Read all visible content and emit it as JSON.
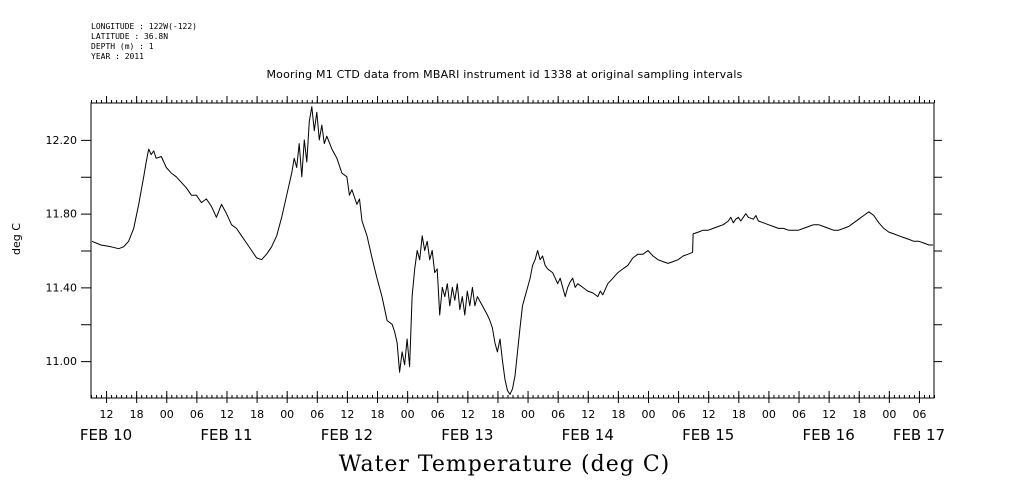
{
  "meta": {
    "longitude": "LONGITUDE : 122W(-122)",
    "latitude": "LATITUDE : 36.8N",
    "depth": "DEPTH (m) : 1",
    "year": "YEAR : 2011"
  },
  "chart_data": {
    "type": "line",
    "title": "Mooring M1 CTD data from MBARI instrument id 1338 at original sampling intervals",
    "xlabel": "Water Temperature (deg C)",
    "ylabel": "deg C",
    "x_unit": "hours from FEB 10 00:00",
    "xlim": [
      9,
      177
    ],
    "ylim": [
      10.8,
      12.4
    ],
    "y_ticks": [
      11.0,
      11.2,
      11.4,
      11.6,
      11.8,
      12.0,
      12.2
    ],
    "y_tick_labels": [
      {
        "value": 11.0,
        "label": "11.00"
      },
      {
        "value": 11.4,
        "label": "11.40"
      },
      {
        "value": 11.8,
        "label": "11.80"
      },
      {
        "value": 12.2,
        "label": "12.20"
      }
    ],
    "hour_ticks": [
      {
        "h": 12,
        "label": "12"
      },
      {
        "h": 18,
        "label": "18"
      },
      {
        "h": 24,
        "label": "00"
      },
      {
        "h": 30,
        "label": "06"
      },
      {
        "h": 36,
        "label": "12"
      },
      {
        "h": 42,
        "label": "18"
      },
      {
        "h": 48,
        "label": "00"
      },
      {
        "h": 54,
        "label": "06"
      },
      {
        "h": 60,
        "label": "12"
      },
      {
        "h": 66,
        "label": "18"
      },
      {
        "h": 72,
        "label": "00"
      },
      {
        "h": 78,
        "label": "06"
      },
      {
        "h": 84,
        "label": "12"
      },
      {
        "h": 90,
        "label": "18"
      },
      {
        "h": 96,
        "label": "00"
      },
      {
        "h": 102,
        "label": "06"
      },
      {
        "h": 108,
        "label": "12"
      },
      {
        "h": 114,
        "label": "18"
      },
      {
        "h": 120,
        "label": "00"
      },
      {
        "h": 126,
        "label": "06"
      },
      {
        "h": 132,
        "label": "12"
      },
      {
        "h": 138,
        "label": "18"
      },
      {
        "h": 144,
        "label": "00"
      },
      {
        "h": 150,
        "label": "06"
      },
      {
        "h": 156,
        "label": "12"
      },
      {
        "h": 162,
        "label": "18"
      },
      {
        "h": 168,
        "label": "00"
      },
      {
        "h": 174,
        "label": "06"
      }
    ],
    "day_labels": [
      {
        "h": 12,
        "label": "FEB 10"
      },
      {
        "h": 36,
        "label": "FEB 11"
      },
      {
        "h": 60,
        "label": "FEB 12"
      },
      {
        "h": 84,
        "label": "FEB 13"
      },
      {
        "h": 108,
        "label": "FEB 14"
      },
      {
        "h": 132,
        "label": "FEB 15"
      },
      {
        "h": 156,
        "label": "FEB 16"
      },
      {
        "h": 174,
        "label": "FEB 17"
      }
    ],
    "series": [
      {
        "points": [
          [
            9.2,
            11.65
          ],
          [
            11.0,
            11.63
          ],
          [
            13.0,
            11.62
          ],
          [
            14.5,
            11.61
          ],
          [
            15.5,
            11.62
          ],
          [
            16.5,
            11.65
          ],
          [
            17.5,
            11.72
          ],
          [
            18.5,
            11.85
          ],
          [
            19.5,
            12.0
          ],
          [
            20.0,
            12.08
          ],
          [
            20.5,
            12.15
          ],
          [
            21.0,
            12.12
          ],
          [
            21.5,
            12.14
          ],
          [
            22.0,
            12.1
          ],
          [
            23.0,
            12.11
          ],
          [
            24.0,
            12.05
          ],
          [
            25.0,
            12.02
          ],
          [
            26.0,
            12.0
          ],
          [
            27.0,
            11.97
          ],
          [
            28.0,
            11.94
          ],
          [
            29.0,
            11.9
          ],
          [
            30.0,
            11.9
          ],
          [
            31.0,
            11.86
          ],
          [
            32.0,
            11.88
          ],
          [
            33.0,
            11.84
          ],
          [
            34.0,
            11.78
          ],
          [
            35.0,
            11.85
          ],
          [
            36.0,
            11.8
          ],
          [
            37.0,
            11.74
          ],
          [
            38.0,
            11.72
          ],
          [
            39.0,
            11.68
          ],
          [
            40.0,
            11.64
          ],
          [
            41.0,
            11.6
          ],
          [
            42.0,
            11.56
          ],
          [
            43.0,
            11.55
          ],
          [
            44.0,
            11.58
          ],
          [
            45.0,
            11.62
          ],
          [
            46.0,
            11.68
          ],
          [
            47.0,
            11.78
          ],
          [
            48.0,
            11.9
          ],
          [
            49.0,
            12.02
          ],
          [
            49.5,
            12.1
          ],
          [
            50.0,
            12.05
          ],
          [
            50.5,
            12.18
          ],
          [
            51.0,
            12.0
          ],
          [
            51.5,
            12.2
          ],
          [
            52.0,
            12.08
          ],
          [
            52.5,
            12.3
          ],
          [
            53.0,
            12.38
          ],
          [
            53.5,
            12.25
          ],
          [
            54.0,
            12.35
          ],
          [
            54.5,
            12.2
          ],
          [
            55.0,
            12.28
          ],
          [
            55.5,
            12.18
          ],
          [
            56.0,
            12.22
          ],
          [
            57.0,
            12.15
          ],
          [
            58.0,
            12.1
          ],
          [
            59.0,
            12.02
          ],
          [
            60.0,
            12.0
          ],
          [
            60.5,
            11.9
          ],
          [
            61.0,
            11.93
          ],
          [
            62.0,
            11.85
          ],
          [
            62.5,
            11.88
          ],
          [
            63.0,
            11.76
          ],
          [
            64.0,
            11.68
          ],
          [
            65.0,
            11.56
          ],
          [
            66.0,
            11.45
          ],
          [
            67.0,
            11.35
          ],
          [
            68.0,
            11.22
          ],
          [
            69.0,
            11.2
          ],
          [
            69.5,
            11.16
          ],
          [
            70.0,
            11.1
          ],
          [
            70.5,
            10.94
          ],
          [
            71.0,
            11.05
          ],
          [
            71.5,
            10.98
          ],
          [
            72.0,
            11.12
          ],
          [
            72.5,
            10.97
          ],
          [
            73.0,
            11.35
          ],
          [
            73.5,
            11.5
          ],
          [
            74.0,
            11.6
          ],
          [
            74.5,
            11.55
          ],
          [
            75.0,
            11.68
          ],
          [
            75.5,
            11.6
          ],
          [
            76.0,
            11.65
          ],
          [
            76.5,
            11.55
          ],
          [
            77.0,
            11.6
          ],
          [
            77.5,
            11.48
          ],
          [
            78.0,
            11.5
          ],
          [
            78.5,
            11.25
          ],
          [
            79.0,
            11.4
          ],
          [
            79.5,
            11.35
          ],
          [
            80.0,
            11.42
          ],
          [
            80.5,
            11.3
          ],
          [
            81.0,
            11.4
          ],
          [
            81.5,
            11.33
          ],
          [
            82.0,
            11.42
          ],
          [
            82.5,
            11.28
          ],
          [
            83.0,
            11.35
          ],
          [
            83.5,
            11.25
          ],
          [
            84.0,
            11.38
          ],
          [
            84.5,
            11.3
          ],
          [
            85.0,
            11.4
          ],
          [
            85.5,
            11.3
          ],
          [
            86.0,
            11.35
          ],
          [
            87.0,
            11.3
          ],
          [
            88.0,
            11.25
          ],
          [
            88.5,
            11.22
          ],
          [
            89.0,
            11.18
          ],
          [
            89.5,
            11.1
          ],
          [
            90.0,
            11.05
          ],
          [
            90.5,
            11.12
          ],
          [
            91.0,
            11.0
          ],
          [
            91.5,
            10.9
          ],
          [
            92.0,
            10.84
          ],
          [
            92.5,
            10.82
          ],
          [
            93.0,
            10.85
          ],
          [
            93.5,
            10.92
          ],
          [
            94.0,
            11.05
          ],
          [
            94.5,
            11.18
          ],
          [
            95.0,
            11.3
          ],
          [
            95.5,
            11.35
          ],
          [
            96.0,
            11.4
          ],
          [
            96.5,
            11.45
          ],
          [
            97.0,
            11.52
          ],
          [
            97.5,
            11.55
          ],
          [
            98.0,
            11.6
          ],
          [
            98.5,
            11.55
          ],
          [
            99.0,
            11.57
          ],
          [
            99.5,
            11.52
          ],
          [
            100.0,
            11.5
          ],
          [
            101.0,
            11.48
          ],
          [
            101.5,
            11.45
          ],
          [
            102.0,
            11.42
          ],
          [
            102.5,
            11.45
          ],
          [
            103.0,
            11.4
          ],
          [
            103.5,
            11.35
          ],
          [
            104.0,
            11.4
          ],
          [
            104.5,
            11.43
          ],
          [
            105.0,
            11.45
          ],
          [
            105.5,
            11.4
          ],
          [
            106.0,
            11.42
          ],
          [
            107.0,
            11.4
          ],
          [
            108.0,
            11.38
          ],
          [
            109.0,
            11.37
          ],
          [
            110.0,
            11.35
          ],
          [
            110.5,
            11.38
          ],
          [
            111.0,
            11.36
          ],
          [
            112.0,
            11.42
          ],
          [
            113.0,
            11.45
          ],
          [
            114.0,
            11.48
          ],
          [
            115.0,
            11.5
          ],
          [
            116.0,
            11.52
          ],
          [
            117.0,
            11.56
          ],
          [
            118.0,
            11.58
          ],
          [
            119.0,
            11.58
          ],
          [
            120.0,
            11.6
          ],
          [
            121.0,
            11.57
          ],
          [
            122.0,
            11.55
          ],
          [
            123.0,
            11.54
          ],
          [
            124.0,
            11.53
          ],
          [
            125.0,
            11.54
          ],
          [
            126.0,
            11.55
          ],
          [
            127.0,
            11.57
          ],
          [
            128.0,
            11.58
          ],
          [
            128.9,
            11.59
          ],
          [
            129.0,
            11.69
          ],
          [
            130.0,
            11.7
          ],
          [
            131.0,
            11.71
          ],
          [
            132.0,
            11.71
          ],
          [
            133.0,
            11.72
          ],
          [
            134.0,
            11.73
          ],
          [
            135.0,
            11.74
          ],
          [
            136.0,
            11.76
          ],
          [
            136.5,
            11.78
          ],
          [
            137.0,
            11.75
          ],
          [
            137.5,
            11.77
          ],
          [
            138.0,
            11.78
          ],
          [
            138.5,
            11.76
          ],
          [
            139.0,
            11.78
          ],
          [
            139.5,
            11.8
          ],
          [
            140.0,
            11.78
          ],
          [
            141.0,
            11.77
          ],
          [
            141.5,
            11.79
          ],
          [
            142.0,
            11.76
          ],
          [
            143.0,
            11.75
          ],
          [
            144.0,
            11.74
          ],
          [
            145.0,
            11.73
          ],
          [
            146.0,
            11.72
          ],
          [
            147.0,
            11.72
          ],
          [
            148.0,
            11.71
          ],
          [
            149.0,
            11.71
          ],
          [
            150.0,
            11.71
          ],
          [
            151.0,
            11.72
          ],
          [
            152.0,
            11.73
          ],
          [
            153.0,
            11.74
          ],
          [
            154.0,
            11.74
          ],
          [
            155.0,
            11.73
          ],
          [
            156.0,
            11.72
          ],
          [
            157.0,
            11.71
          ],
          [
            158.0,
            11.71
          ],
          [
            159.0,
            11.72
          ],
          [
            160.0,
            11.73
          ],
          [
            161.0,
            11.75
          ],
          [
            162.0,
            11.77
          ],
          [
            163.0,
            11.79
          ],
          [
            164.0,
            11.81
          ],
          [
            165.0,
            11.79
          ],
          [
            166.0,
            11.75
          ],
          [
            167.0,
            11.72
          ],
          [
            168.0,
            11.7
          ],
          [
            169.0,
            11.69
          ],
          [
            170.0,
            11.68
          ],
          [
            171.0,
            11.67
          ],
          [
            172.0,
            11.66
          ],
          [
            173.0,
            11.65
          ],
          [
            174.0,
            11.65
          ],
          [
            175.0,
            11.64
          ],
          [
            176.0,
            11.63
          ],
          [
            176.8,
            11.63
          ]
        ]
      }
    ]
  }
}
